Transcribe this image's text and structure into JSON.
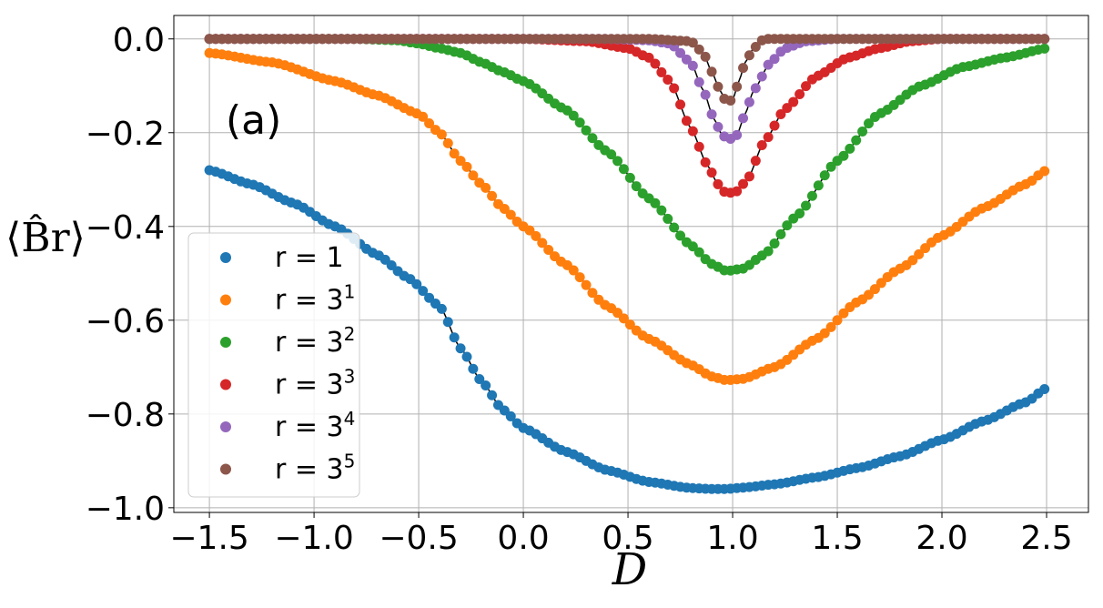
{
  "chart_data": {
    "type": "scatter",
    "panel_label": "(a)",
    "xlabel": "D",
    "ylabel": "⟨B̂r⟩",
    "xlim": [
      -1.67,
      2.7
    ],
    "ylim": [
      -1.01,
      0.05
    ],
    "xticks": [
      -1.5,
      -1.0,
      -0.5,
      0.0,
      0.5,
      1.0,
      1.5,
      2.0,
      2.5
    ],
    "xtick_labels": [
      "−1.5",
      "−1.0",
      "−0.5",
      "0.0",
      "0.5",
      "1.0",
      "1.5",
      "2.0",
      "2.5"
    ],
    "yticks": [
      0.0,
      -0.2,
      -0.4,
      -0.6,
      -0.8,
      -1.0
    ],
    "ytick_labels": [
      "0.0",
      "−0.2",
      "−0.4",
      "−0.6",
      "−0.8",
      "−1.0"
    ],
    "grid": true,
    "legend_position": "center-left",
    "series": [
      {
        "name": "r = 1",
        "base": "r = 1",
        "exp": "",
        "color": "#1f77b4",
        "x": [
          -1.5,
          -1.3,
          -1.1,
          -0.9,
          -0.7,
          -0.55,
          -0.4,
          -0.3,
          -0.2,
          -0.1,
          0.0,
          0.2,
          0.4,
          0.6,
          0.8,
          0.9,
          0.97,
          1.05,
          1.2,
          1.4,
          1.6,
          1.8,
          2.0,
          2.2,
          2.4,
          2.5
        ],
        "y": [
          -0.28,
          -0.31,
          -0.35,
          -0.4,
          -0.46,
          -0.51,
          -0.57,
          -0.66,
          -0.73,
          -0.79,
          -0.83,
          -0.88,
          -0.92,
          -0.945,
          -0.958,
          -0.96,
          -0.96,
          -0.957,
          -0.95,
          -0.935,
          -0.915,
          -0.89,
          -0.855,
          -0.815,
          -0.775,
          -0.745
        ]
      },
      {
        "name": "r = 3^1",
        "base": "r = 3",
        "exp": "1",
        "color": "#ff7f0e",
        "x": [
          -1.5,
          -1.2,
          -0.9,
          -0.7,
          -0.5,
          -0.4,
          -0.3,
          -0.2,
          -0.1,
          0.0,
          0.2,
          0.4,
          0.6,
          0.8,
          0.9,
          0.97,
          1.05,
          1.2,
          1.4,
          1.6,
          1.8,
          2.0,
          2.2,
          2.4,
          2.5
        ],
        "y": [
          -0.03,
          -0.05,
          -0.09,
          -0.12,
          -0.16,
          -0.2,
          -0.26,
          -0.31,
          -0.36,
          -0.4,
          -0.48,
          -0.57,
          -0.64,
          -0.695,
          -0.72,
          -0.728,
          -0.725,
          -0.7,
          -0.64,
          -0.56,
          -0.49,
          -0.42,
          -0.36,
          -0.31,
          -0.28
        ]
      },
      {
        "name": "r = 3^2",
        "base": "r = 3",
        "exp": "2",
        "color": "#2ca02c",
        "x": [
          -1.5,
          -0.8,
          -0.6,
          -0.5,
          -0.4,
          -0.3,
          -0.2,
          -0.1,
          0.0,
          0.2,
          0.4,
          0.6,
          0.8,
          0.9,
          0.97,
          1.05,
          1.15,
          1.3,
          1.5,
          1.7,
          1.9,
          2.1,
          2.3,
          2.5
        ],
        "y": [
          0.0,
          0.0,
          -0.003,
          -0.01,
          -0.02,
          -0.03,
          -0.05,
          -0.07,
          -0.09,
          -0.15,
          -0.24,
          -0.34,
          -0.44,
          -0.48,
          -0.495,
          -0.49,
          -0.46,
          -0.38,
          -0.26,
          -0.16,
          -0.1,
          -0.06,
          -0.04,
          -0.02
        ]
      },
      {
        "name": "r = 3^3",
        "base": "r = 3",
        "exp": "3",
        "color": "#d62728",
        "x": [
          -1.5,
          -0.5,
          -0.3,
          0.0,
          0.3,
          0.5,
          0.6,
          0.7,
          0.8,
          0.88,
          0.93,
          0.97,
          1.02,
          1.07,
          1.15,
          1.25,
          1.4,
          1.55,
          1.7,
          1.85,
          2.0,
          2.5
        ],
        "y": [
          0.0,
          0.0,
          0.0,
          0.0,
          -0.005,
          -0.02,
          -0.04,
          -0.09,
          -0.19,
          -0.27,
          -0.31,
          -0.33,
          -0.325,
          -0.3,
          -0.22,
          -0.15,
          -0.08,
          -0.04,
          -0.02,
          -0.005,
          0.0,
          0.0
        ]
      },
      {
        "name": "r = 3^4",
        "base": "r = 3",
        "exp": "4",
        "color": "#9467bd",
        "x": [
          -1.5,
          -0.4,
          0.0,
          0.4,
          0.6,
          0.7,
          0.8,
          0.86,
          0.91,
          0.95,
          0.98,
          1.02,
          1.06,
          1.1,
          1.18,
          1.25,
          1.35,
          1.5,
          2.0,
          2.5
        ],
        "y": [
          0.0,
          0.0,
          0.0,
          0.0,
          -0.003,
          -0.01,
          -0.05,
          -0.11,
          -0.17,
          -0.205,
          -0.215,
          -0.205,
          -0.16,
          -0.11,
          -0.05,
          -0.02,
          -0.005,
          0.0,
          0.0,
          0.0
        ]
      },
      {
        "name": "r = 3^5",
        "base": "r = 3",
        "exp": "5",
        "color": "#8c564b",
        "x": [
          -1.5,
          -1.2,
          -0.9,
          -0.6,
          -0.4,
          -0.3,
          -0.2,
          0.0,
          0.3,
          0.6,
          0.8,
          0.86,
          0.9,
          0.94,
          0.97,
          1.0,
          1.03,
          1.06,
          1.1,
          1.15,
          1.3,
          1.6,
          2.0,
          2.5
        ],
        "y": [
          0.0,
          0.0,
          0.0,
          0.0,
          0.0,
          0.0,
          0.0,
          0.0,
          0.0,
          0.0,
          -0.005,
          -0.03,
          -0.07,
          -0.11,
          -0.135,
          -0.13,
          -0.09,
          -0.05,
          -0.02,
          0.0,
          0.0,
          0.0,
          0.0,
          0.0
        ]
      }
    ]
  }
}
